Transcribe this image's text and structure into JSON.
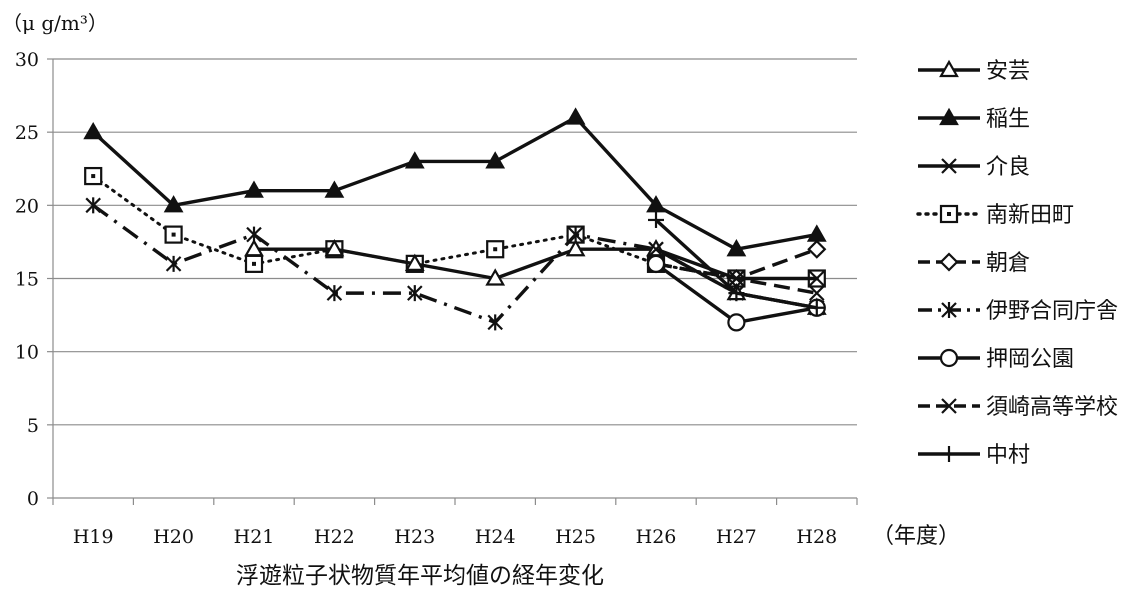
{
  "chart_data": {
    "type": "line",
    "caption": "浮遊粒子状物質年平均値の経年変化",
    "y_unit": "（μ g/m³）",
    "x_unit": "（年度）",
    "categories": [
      "H19",
      "H20",
      "H21",
      "H22",
      "H23",
      "H24",
      "H25",
      "H26",
      "H27",
      "H28"
    ],
    "ylim": [
      0,
      30
    ],
    "yticks": [
      0,
      5,
      10,
      15,
      20,
      25,
      30
    ],
    "grid": true,
    "legend_position": "right",
    "series": [
      {
        "name": "安芸",
        "marker": "triangle-open",
        "dash": "solid",
        "values": [
          null,
          null,
          17,
          17,
          16,
          15,
          17,
          17,
          14,
          13
        ]
      },
      {
        "name": "稲生",
        "marker": "triangle-filled",
        "dash": "solid",
        "values": [
          25,
          20,
          21,
          21,
          23,
          23,
          26,
          20,
          17,
          18
        ]
      },
      {
        "name": "介良",
        "marker": "x",
        "dash": "solid",
        "values": [
          null,
          null,
          null,
          null,
          null,
          null,
          null,
          17,
          15,
          15
        ]
      },
      {
        "name": "南新田町",
        "marker": "square-dot",
        "dash": "dotted",
        "values": [
          22,
          18,
          16,
          17,
          16,
          17,
          18,
          16,
          15,
          15
        ]
      },
      {
        "name": "朝倉",
        "marker": "diamond-open",
        "dash": "dashed",
        "values": [
          null,
          null,
          null,
          null,
          null,
          null,
          null,
          16,
          15,
          17
        ]
      },
      {
        "name": "伊野合同庁舎",
        "marker": "asterisk",
        "dash": "dashdot",
        "values": [
          20,
          16,
          18,
          14,
          14,
          12,
          18,
          17,
          14,
          13
        ]
      },
      {
        "name": "押岡公園",
        "marker": "circle-open",
        "dash": "solid",
        "values": [
          null,
          null,
          null,
          null,
          null,
          null,
          null,
          16,
          12,
          13
        ]
      },
      {
        "name": "須崎高等学校",
        "marker": "x",
        "dash": "dashed",
        "values": [
          null,
          null,
          null,
          null,
          null,
          null,
          null,
          16,
          15,
          14
        ]
      },
      {
        "name": "中村",
        "marker": "plus",
        "dash": "solid",
        "values": [
          null,
          null,
          null,
          null,
          null,
          null,
          null,
          19,
          14,
          13
        ]
      }
    ]
  }
}
